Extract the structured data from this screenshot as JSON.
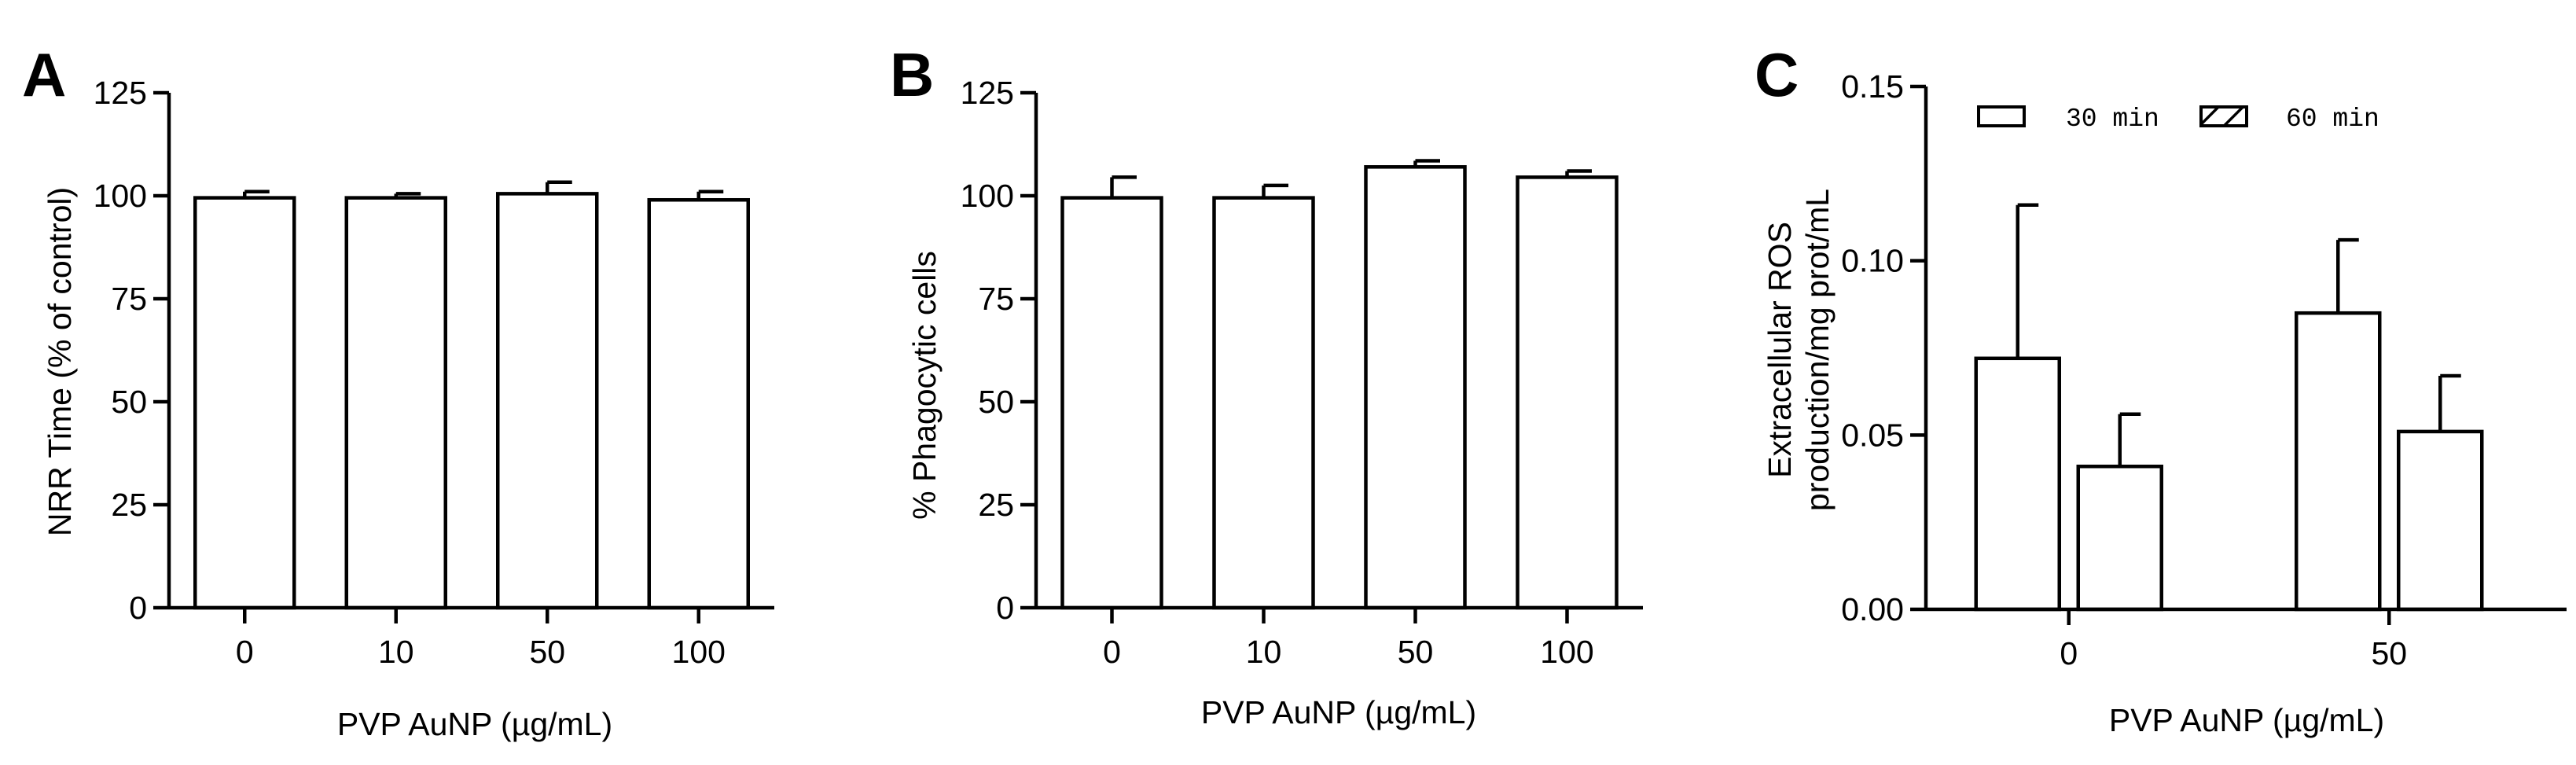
{
  "panels_label": "figure",
  "chart_data": [
    {
      "panel": "A",
      "type": "bar",
      "categories": [
        "0",
        "10",
        "50",
        "100"
      ],
      "series": [
        {
          "values": [
            99.5,
            99.5,
            100.5,
            99.0
          ],
          "errors": [
            1.5,
            1.0,
            2.8,
            2.0
          ]
        }
      ],
      "xlabel": "PVP AuNP (µg/mL)",
      "ylabel": "NRR Time (% of control)",
      "ylim": [
        0,
        125
      ],
      "yticks": [
        "0",
        "25",
        "50",
        "75",
        "100",
        "125"
      ],
      "grid": false
    },
    {
      "panel": "B",
      "type": "bar",
      "categories": [
        "0",
        "10",
        "50",
        "100"
      ],
      "series": [
        {
          "values": [
            99.5,
            99.5,
            107.0,
            104.5
          ],
          "errors": [
            5.0,
            3.0,
            1.5,
            1.5
          ]
        }
      ],
      "xlabel": "PVP AuNP (µg/mL)",
      "ylabel": "% Phagocytic cells",
      "ylim": [
        0,
        125
      ],
      "yticks": [
        "0",
        "25",
        "50",
        "75",
        "100",
        "125"
      ],
      "grid": false
    },
    {
      "panel": "C",
      "type": "bar",
      "categories": [
        "0",
        "50"
      ],
      "series": [
        {
          "name": "30 min",
          "values": [
            0.072,
            0.085
          ],
          "errors": [
            0.044,
            0.021
          ],
          "pattern": "open"
        },
        {
          "name": "60 min",
          "values": [
            0.041,
            0.051
          ],
          "errors": [
            0.015,
            0.016
          ],
          "pattern": "hatched"
        }
      ],
      "xlabel": "PVP AuNP (µg/mL)",
      "ylabel_lines": [
        "Extracellular ROS",
        "production/mg prot/mL"
      ],
      "ylim": [
        0,
        0.15
      ],
      "yticks": [
        "0.00",
        "0.05",
        "0.10",
        "0.15"
      ],
      "legend": "top",
      "grid": false
    }
  ]
}
